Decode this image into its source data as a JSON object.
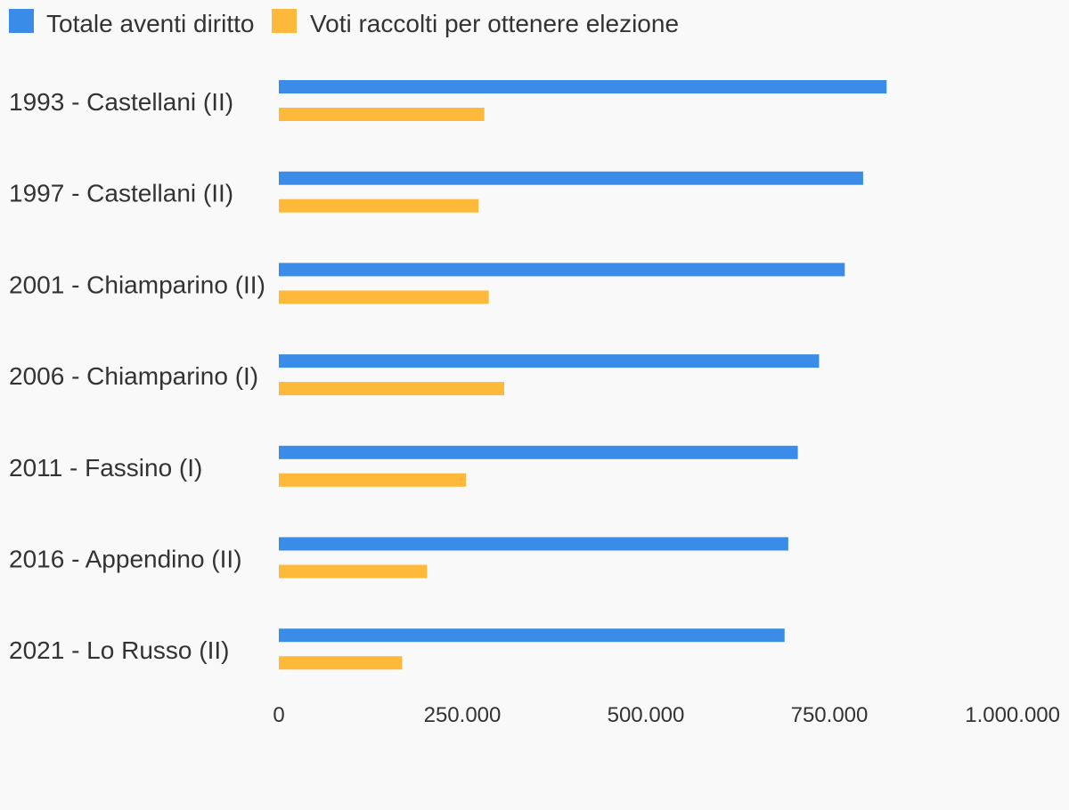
{
  "colors": {
    "background": "#f9f9f9",
    "series_1": "#3a8ce8",
    "series_2": "#ffb93a",
    "text": "#333333"
  },
  "chart_data": {
    "type": "bar",
    "orientation": "horizontal",
    "title": "",
    "xlabel": "",
    "ylabel": "",
    "legend_position": "top-left",
    "grid": false,
    "categories": [
      "1993 - Castellani (II)",
      "1997 - Castellani (II)",
      "2001 - Chiamparino (II)",
      "2006 - Chiamparino (I)",
      "2011 - Fassino (I)",
      "2016 - Appendino (II)",
      "2021 - Lo Russo (II)"
    ],
    "series": [
      {
        "name": "Totale aventi diritto",
        "color": "#3a8ce8",
        "values": [
          828000,
          796000,
          771000,
          736000,
          707000,
          694000,
          689000
        ]
      },
      {
        "name": "Voti raccolti per ottenere elezione",
        "color": "#ffb93a",
        "values": [
          280000,
          272000,
          286000,
          307000,
          255000,
          202000,
          168000
        ]
      }
    ],
    "xlim": [
      0,
      1000000
    ],
    "x_ticks": [
      0,
      250000,
      500000,
      750000,
      1000000
    ],
    "x_tick_labels": [
      "0",
      "250.000",
      "500.000",
      "750.000",
      "1.000.000"
    ]
  }
}
